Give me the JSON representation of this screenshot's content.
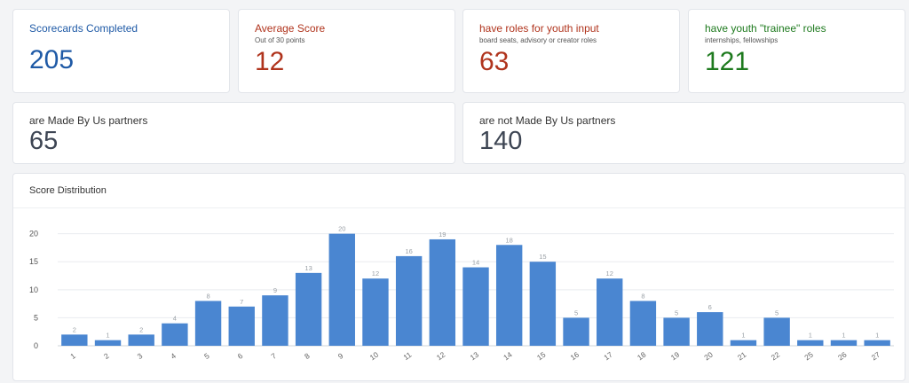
{
  "stats": {
    "completed": {
      "title": "Scorecards Completed",
      "subtitle": "",
      "value": "205",
      "color": "#1f5aa6"
    },
    "average": {
      "title": "Average Score",
      "subtitle": "Out of 30 points",
      "value": "12",
      "color": "#b0341d"
    },
    "youth_input": {
      "title": "have roles for youth input",
      "subtitle": "board seats, advisory or creator roles",
      "value": "63",
      "color": "#b0341d"
    },
    "trainee": {
      "title": "have youth \"trainee\" roles",
      "subtitle": "internships, fellowships",
      "value": "121",
      "color": "#1e7a1e"
    }
  },
  "partners": {
    "made_by_us": {
      "title": "are Made By Us partners",
      "value": "65"
    },
    "not_made_by_us": {
      "title": "are not Made By Us partners",
      "value": "140"
    }
  },
  "chart_data": {
    "type": "bar",
    "title": "Score Distribution",
    "categories": [
      "1",
      "2",
      "3",
      "4",
      "5",
      "6",
      "7",
      "8",
      "9",
      "10",
      "11",
      "12",
      "13",
      "14",
      "15",
      "16",
      "17",
      "18",
      "19",
      "20",
      "21",
      "22",
      "25",
      "26",
      "27"
    ],
    "values": [
      2,
      1,
      2,
      4,
      8,
      7,
      9,
      13,
      20,
      12,
      16,
      19,
      14,
      18,
      15,
      5,
      12,
      8,
      5,
      6,
      1,
      5,
      1,
      1,
      1
    ],
    "ylim": [
      0,
      22
    ],
    "yticks": [
      0,
      5,
      10,
      15,
      20
    ],
    "grid": true,
    "bar_color": "#4a86d1",
    "xlabel": "",
    "ylabel": ""
  }
}
